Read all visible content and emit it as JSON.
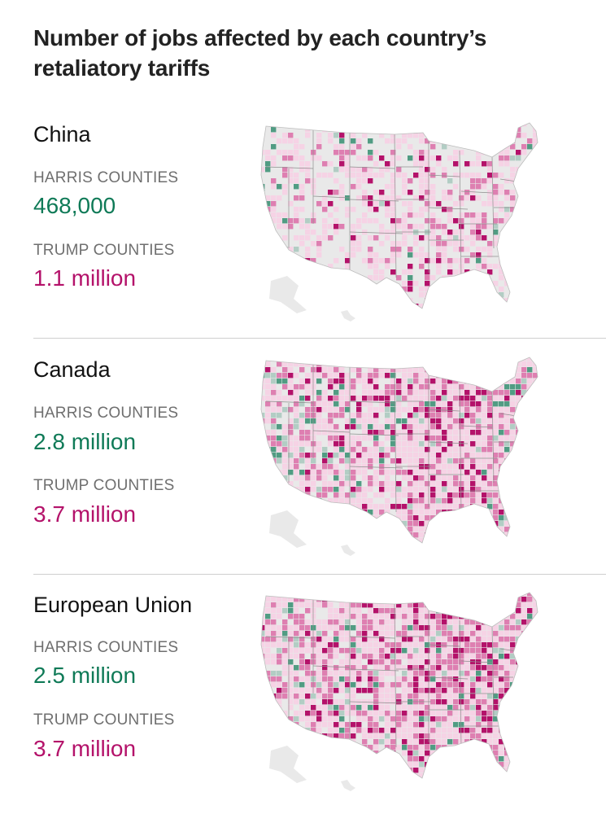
{
  "title": "Number of jobs affected by each country’s retaliatory tariffs",
  "colors": {
    "harris": "#0f7a57",
    "trump": "#b4126a",
    "land": "#e9e9e9",
    "border": "#ffffff"
  },
  "panels": [
    {
      "country": "China",
      "harris_label": "HARRIS COUNTIES",
      "harris_value": "468,000",
      "trump_label": "TRUMP COUNTIES",
      "trump_value": "1.1 million"
    },
    {
      "country": "Canada",
      "harris_label": "HARRIS COUNTIES",
      "harris_value": "2.8 million",
      "trump_label": "TRUMP COUNTIES",
      "trump_value": "3.7 million"
    },
    {
      "country": "European Union",
      "harris_label": "HARRIS COUNTIES",
      "harris_value": "2.5 million",
      "trump_label": "TRUMP COUNTIES",
      "trump_value": "3.7 million"
    }
  ]
}
